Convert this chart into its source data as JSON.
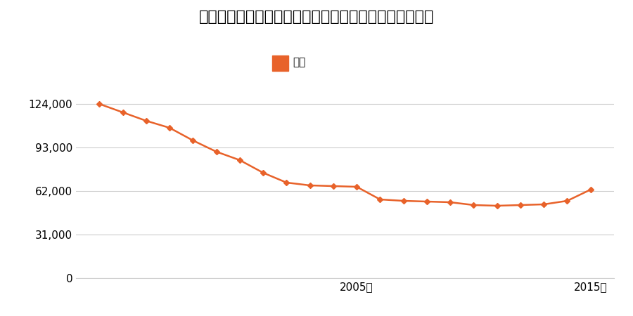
{
  "title": "宮城県仙台市宮城野区清水沼２丁目４０番５の地価推移",
  "legend_label": "価格",
  "years": [
    1994,
    1995,
    1996,
    1997,
    1998,
    1999,
    2000,
    2001,
    2002,
    2003,
    2004,
    2005,
    2006,
    2007,
    2008,
    2009,
    2010,
    2011,
    2012,
    2013,
    2014,
    2015
  ],
  "values": [
    124000,
    118000,
    112000,
    107000,
    98000,
    90000,
    84000,
    75000,
    68000,
    66000,
    65500,
    65000,
    56000,
    55000,
    54500,
    54000,
    52000,
    51500,
    52000,
    52500,
    55000,
    63000
  ],
  "line_color": "#e8622a",
  "marker_color": "#e8622a",
  "background_color": "#ffffff",
  "grid_color": "#cccccc",
  "yticks": [
    0,
    31000,
    62000,
    93000,
    124000
  ],
  "xtick_labels": [
    "2005年",
    "2015年"
  ],
  "xtick_positions": [
    2005,
    2015
  ],
  "ylim": [
    0,
    135000
  ],
  "xlim": [
    1993,
    2016
  ]
}
